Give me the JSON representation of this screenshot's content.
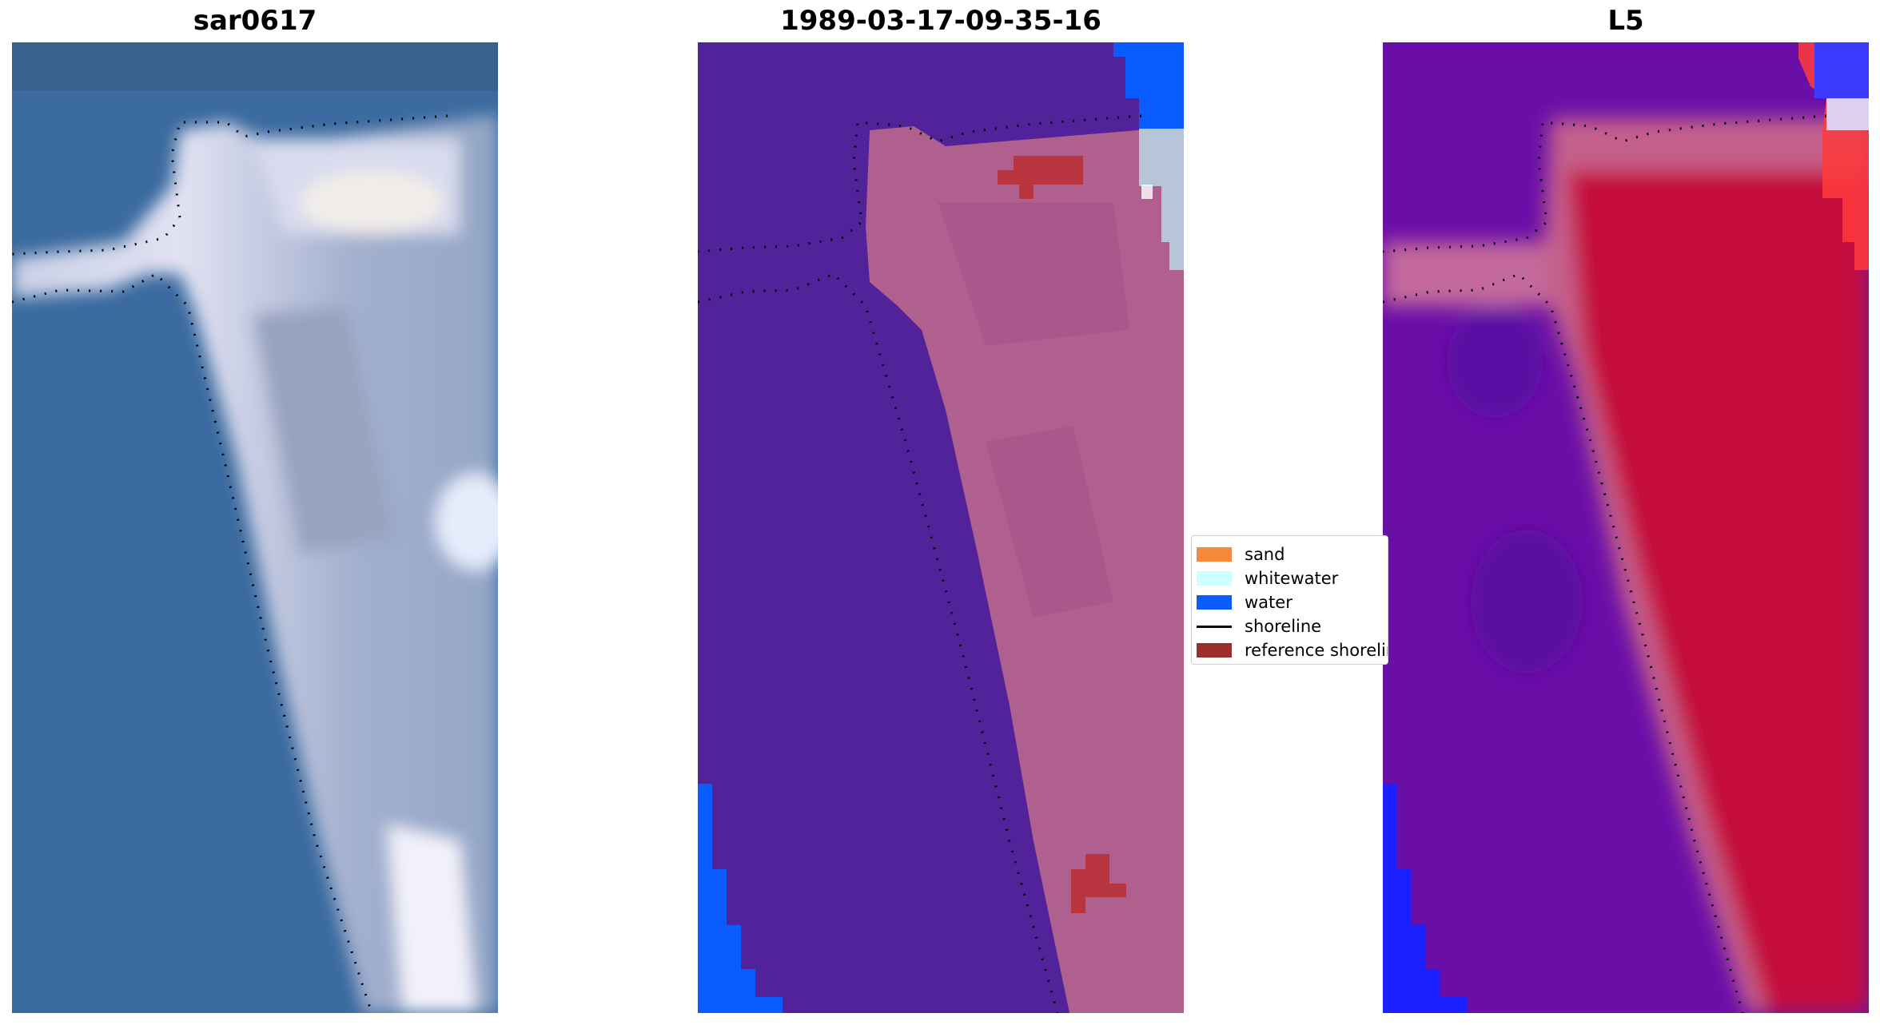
{
  "panels": [
    {
      "title": "sar0617"
    },
    {
      "title": "1989-03-17-09-35-16"
    },
    {
      "title": "L5"
    }
  ],
  "legend": {
    "items": [
      {
        "label": "sand",
        "color": "#f58a3a",
        "kind": "patch"
      },
      {
        "label": "whitewater",
        "color": "#ccffff",
        "kind": "patch"
      },
      {
        "label": "water",
        "color": "#0a5cff",
        "kind": "patch"
      },
      {
        "label": "shoreline",
        "color": "#000000",
        "kind": "line"
      },
      {
        "label": "reference shoreline",
        "color": "#9b2d2d",
        "kind": "patch"
      }
    ]
  },
  "colors": {
    "sar_water": "#3a6a9f",
    "class_background": "#52229a",
    "class_sand_overlay": "#b0608f",
    "class_water": "#0a5cff",
    "class_whitewater": "#b6c6d8",
    "reference_shoreline": "#b8343f",
    "index_low": "#6a0ea8",
    "index_high": "#c4103e"
  }
}
